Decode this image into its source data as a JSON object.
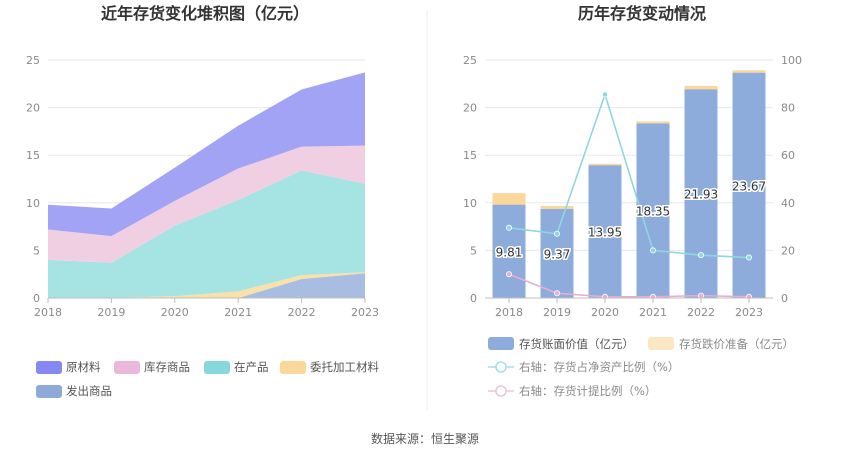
{
  "source": "数据来源：恒生聚源",
  "chart_data": [
    {
      "type": "area",
      "stacked": true,
      "title": "近年存货变化堆积图（亿元）",
      "x": [
        "2018",
        "2019",
        "2020",
        "2021",
        "2022",
        "2023"
      ],
      "ylim": [
        0,
        25
      ],
      "yticks": [
        "0",
        "5",
        "10",
        "15",
        "20",
        "25"
      ],
      "grid": true,
      "legend_position": "bottom",
      "series": [
        {
          "name": "发出商品",
          "color": "#a9bde3",
          "values": [
            0,
            0,
            0,
            0,
            2.0,
            2.6
          ]
        },
        {
          "name": "委托加工材料",
          "color": "#fbe0a8",
          "values": [
            0,
            0,
            0.2,
            0.7,
            0.4,
            0.1
          ]
        },
        {
          "name": "在产品",
          "color": "#a6e3e3",
          "values": [
            4.0,
            3.7,
            7.4,
            9.6,
            11.0,
            9.3
          ]
        },
        {
          "name": "库存商品",
          "color": "#f1cfe3",
          "values": [
            3.2,
            2.8,
            2.6,
            3.3,
            2.5,
            4.0
          ]
        },
        {
          "name": "原材料",
          "color": "#a3a3f6",
          "values": [
            2.6,
            2.9,
            3.5,
            4.5,
            6.0,
            7.7
          ]
        }
      ],
      "legend": [
        {
          "name": "原材料",
          "color": "#8588f2"
        },
        {
          "name": "库存商品",
          "color": "#ebb7da"
        },
        {
          "name": "在产品",
          "color": "#86d8dc"
        },
        {
          "name": "委托加工材料",
          "color": "#f9d89a"
        },
        {
          "name": "发出商品",
          "color": "#8eaad9"
        }
      ]
    },
    {
      "type": "bar",
      "stacked": true,
      "title": "历年存货变动情况",
      "categories": [
        "2018",
        "2019",
        "2020",
        "2021",
        "2022",
        "2023"
      ],
      "ylim": [
        0,
        25
      ],
      "yticks": [
        "0",
        "5",
        "10",
        "15",
        "20",
        "25"
      ],
      "y2lim": [
        0,
        100
      ],
      "y2ticks": [
        "0",
        "20",
        "40",
        "60",
        "80",
        "100"
      ],
      "grid": true,
      "legend_position": "bottom",
      "series": [
        {
          "name": "存货账面价值（亿元）",
          "kind": "bar",
          "color": "#8dacdc",
          "values": [
            9.81,
            9.37,
            13.95,
            18.35,
            21.93,
            23.67
          ],
          "labels": [
            "9.81",
            "9.37",
            "13.95",
            "18.35",
            "21.93",
            "23.67"
          ]
        },
        {
          "name": "存货跌价准备（亿元）",
          "kind": "bar",
          "color": "#fcd79c",
          "values": [
            1.2,
            0.3,
            0.15,
            0.2,
            0.35,
            0.25
          ]
        },
        {
          "name": "右轴：存货占净资产比例（%）",
          "kind": "line",
          "axis": "right",
          "color": "#8fd7de",
          "values": [
            29.5,
            27.0,
            85.5,
            20.0,
            18.0,
            17.0
          ]
        },
        {
          "name": "右轴：存货计提比例（%）",
          "kind": "line",
          "axis": "right",
          "color": "#e5afd2",
          "values": [
            10.0,
            2.0,
            0.5,
            0.5,
            1.0,
            0.5
          ]
        }
      ]
    }
  ]
}
